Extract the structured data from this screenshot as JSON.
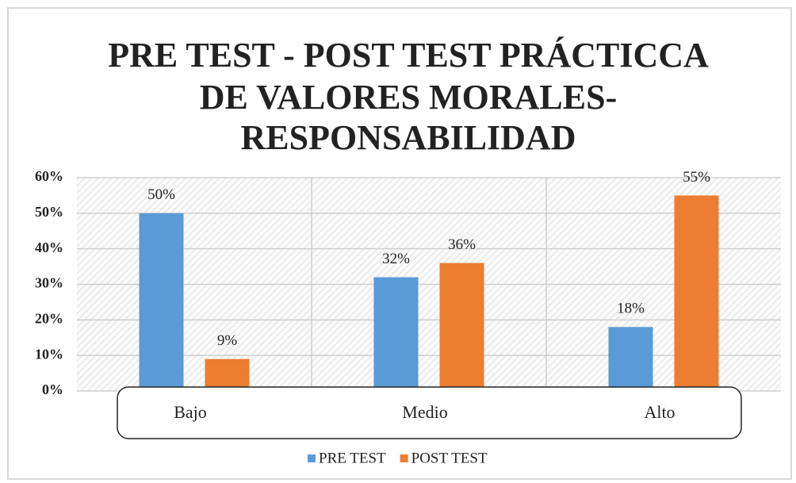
{
  "chart_data": {
    "type": "bar",
    "title": [
      "PRE TEST - POST TEST PRÁCTICCA",
      "DE VALORES MORALES-",
      "RESPONSABILIDAD"
    ],
    "categories": [
      "Bajo",
      "Medio",
      "Alto"
    ],
    "series": [
      {
        "name": "PRE TEST",
        "color": "#5b9bd5",
        "values": [
          50,
          32,
          18
        ],
        "value_labels": [
          "50%",
          "32%",
          "18%"
        ]
      },
      {
        "name": "POST TEST",
        "color": "#ed7d31",
        "values": [
          9,
          36,
          55
        ],
        "value_labels": [
          "9%",
          "36%",
          "55%"
        ]
      }
    ],
    "ylim": [
      0,
      60
    ],
    "yticks": [
      {
        "value": 0,
        "label": "0%"
      },
      {
        "value": 10,
        "label": "10%"
      },
      {
        "value": 20,
        "label": "20%"
      },
      {
        "value": 30,
        "label": "30%"
      },
      {
        "value": 40,
        "label": "40%"
      },
      {
        "value": 50,
        "label": "50%"
      },
      {
        "value": 60,
        "label": "60%"
      }
    ],
    "grid": true,
    "legend": "bottom"
  }
}
